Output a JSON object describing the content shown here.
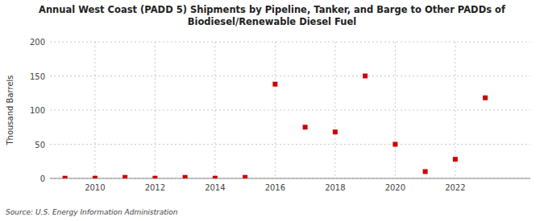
{
  "chart_data": {
    "type": "scatter",
    "title": "Annual West Coast (PADD 5) Shipments by Pipeline, Tanker, and Barge to Other PADDs of\nBiodiesel/Renewable Diesel Fuel",
    "ylabel": "Thousand Barrels",
    "annotations": [
      "Source: U.S. Energy Information Administration"
    ],
    "x": [
      2009,
      2010,
      2011,
      2012,
      2013,
      2014,
      2015,
      2016,
      2017,
      2018,
      2019,
      2020,
      2021,
      2022,
      2023
    ],
    "values": [
      0.3,
      0.3,
      1.5,
      0.3,
      1.5,
      0.3,
      1.5,
      138,
      75,
      68,
      150,
      50,
      10,
      28,
      118
    ],
    "color": "#cc0000",
    "marker": "square",
    "xlim": [
      2008.5,
      2024.5
    ],
    "xticks": [
      2010,
      2012,
      2014,
      2016,
      2018,
      2020,
      2022
    ],
    "ylim": [
      0,
      200
    ],
    "yticks": [
      0,
      50,
      100,
      150,
      200
    ],
    "grid": true
  }
}
